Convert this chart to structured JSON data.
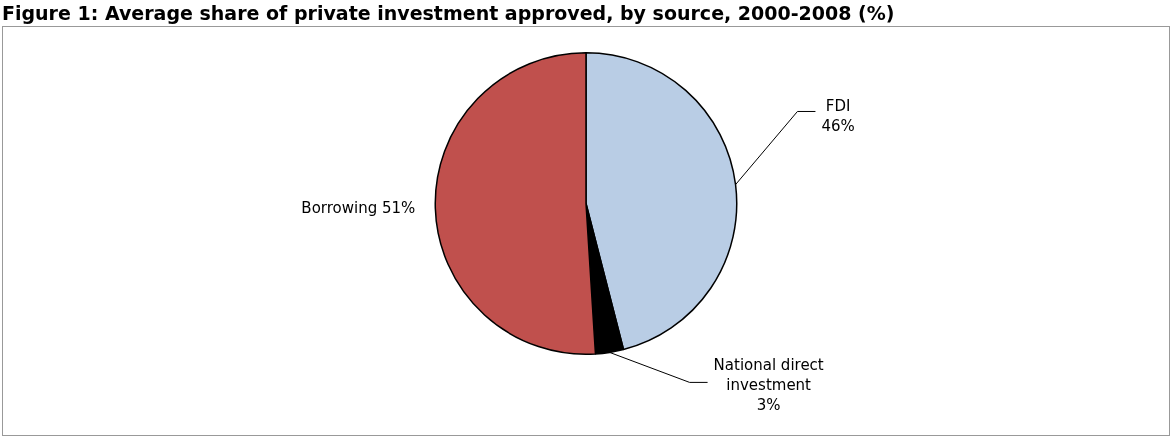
{
  "chart_data": {
    "type": "pie",
    "title": "Figure 1: Average share of private investment approved, by source, 2000-2008 (%)",
    "categories": [
      "FDI",
      "National direct investment",
      "Borrowing"
    ],
    "values": [
      46,
      3,
      51
    ],
    "value_labels": [
      "46%",
      "3%",
      "51%"
    ],
    "colors": [
      "#b9cde5",
      "#000000",
      "#c0504d"
    ]
  }
}
